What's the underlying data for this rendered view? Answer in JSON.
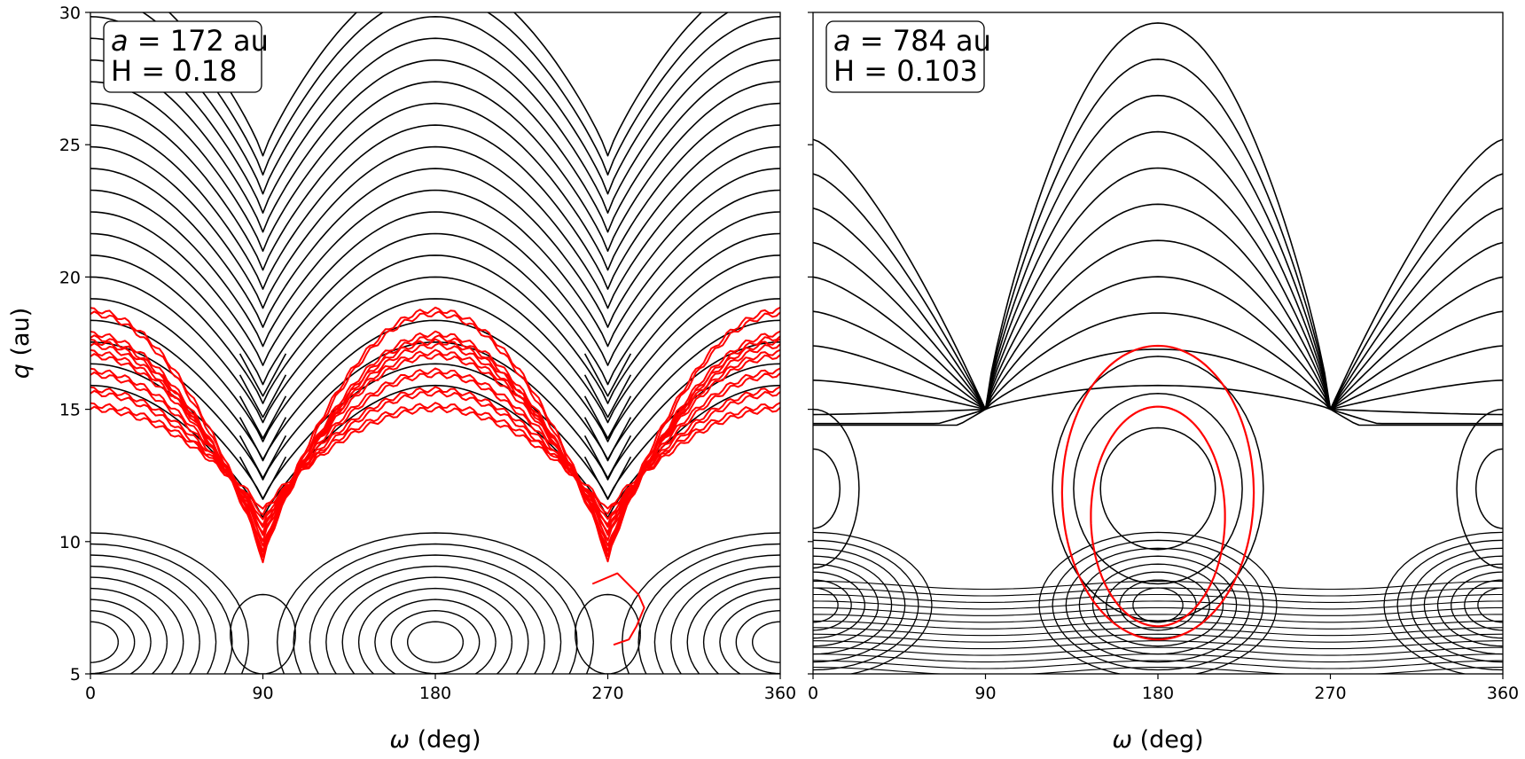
{
  "figure": {
    "ylabel_symbol": "q",
    "ylabel_unit": " (au)",
    "xlabel_symbol": "ω",
    "xlabel_unit": " (deg)"
  },
  "chart_data": [
    {
      "type": "line",
      "panel": "left",
      "annotation": {
        "a_symbol": "a",
        "a_value": " = 172 au",
        "h_line": "H = 0.18"
      },
      "xlim": [
        0,
        360
      ],
      "ylim": [
        5,
        30
      ],
      "xticks": [
        0,
        90,
        180,
        270,
        360
      ],
      "yticks": [
        5,
        10,
        15,
        20,
        25,
        30
      ],
      "grid": false,
      "contour_color": "#000000",
      "trajectory_color": "#ff0000",
      "contour_levels_q_at_90": [
        24.0,
        18.9,
        15.5,
        14.7,
        13.9,
        13.1,
        12.4,
        11.6,
        10.9
      ],
      "contour_levels_q_at_0": [
        26.0,
        25.2,
        24.4,
        23.6,
        22.8,
        22.0,
        21.2,
        20.4,
        19.6,
        18.8,
        18.0,
        17.2,
        16.4,
        15.6,
        14.8,
        14.0,
        13.2,
        12.4,
        11.6,
        10.8,
        9.2
      ],
      "trajectories": [
        {
          "q_at_0": 18.6,
          "q_min": 9.2
        },
        {
          "q_at_0": 17.7,
          "q_min": 9.4
        },
        {
          "q_at_0": 17.4,
          "q_min": 9.6
        },
        {
          "q_at_0": 17.0,
          "q_min": 10.0
        },
        {
          "q_at_0": 16.3,
          "q_min": 10.3
        },
        {
          "q_at_0": 15.6,
          "q_min": 10.6
        },
        {
          "q_at_0": 15.0,
          "q_min": 11.0
        }
      ]
    },
    {
      "type": "line",
      "panel": "right",
      "annotation": {
        "a_symbol": "a",
        "a_value": " = 784 au",
        "h_line": "H = 0.103"
      },
      "xlim": [
        0,
        360
      ],
      "ylim": [
        5,
        30
      ],
      "xticks": [
        0,
        90,
        180,
        270,
        360
      ],
      "yticks": [
        5,
        10,
        15,
        20,
        25,
        30
      ],
      "grid": false,
      "contour_color": "#000000",
      "trajectory_color": "#ff0000",
      "contour_levels_q_at_180": [
        29.6,
        27.9,
        26.5,
        25.2,
        23.8,
        22.5,
        21.1,
        19.8,
        18.4
      ],
      "island_centers_q": [
        12.0,
        7.6
      ],
      "trajectories": [
        {
          "q_top": 17.4,
          "q_bottom": 6.3
        },
        {
          "q_top": 15.1,
          "q_bottom": 6.8
        }
      ]
    }
  ]
}
